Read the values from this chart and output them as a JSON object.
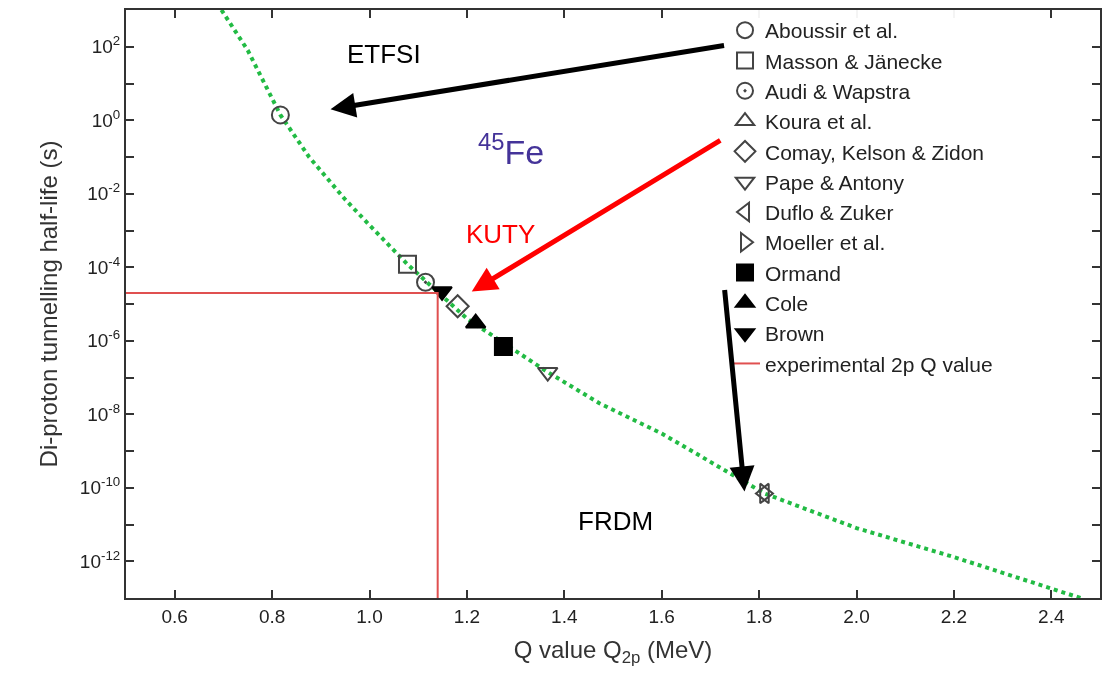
{
  "chart_data": {
    "type": "scatter",
    "xlabel": "Q value Q$_{2p}$ (MeV)",
    "ylabel": "Di-proton tunnelling half-life (s)",
    "log": "y",
    "xlim": [
      0.5,
      2.5
    ],
    "xticks": [
      0.6,
      0.8,
      {
        "value": 1,
        "label": "1.0"
      },
      1.2,
      1.4,
      1.6,
      1.8,
      {
        "value": 2,
        "label": "2.0"
      },
      2.2,
      2.4
    ],
    "ylim": [
      1e-13,
      1000
    ],
    "yticks": [
      {
        "value": 1e-12,
        "label": "10$^{-12}$"
      },
      {
        "value": 1e-11,
        "label": null
      },
      {
        "value": 1e-10,
        "label": "10$^{-10}$"
      },
      {
        "value": 1e-09,
        "label": null
      },
      {
        "value": 1e-08,
        "label": "10$^{-8}$"
      },
      {
        "value": 1e-07,
        "label": null
      },
      {
        "value": 1e-06,
        "label": "10$^{-6}$"
      },
      {
        "value": 1e-05,
        "label": null
      },
      {
        "value": 0.0001,
        "label": "10$^{-4}$"
      },
      {
        "value": 0.001,
        "label": null
      },
      {
        "value": 0.01,
        "label": "10$^{-2}$"
      },
      {
        "value": 0.1,
        "label": null
      },
      {
        "value": 1,
        "label": "10$^{0}$"
      },
      {
        "value": 10,
        "label": null
      },
      {
        "value": 100,
        "label": "10$^{2}$"
      }
    ],
    "legend": "top right",
    "series": [
      {
        "type": "line",
        "color": "#22bb44",
        "line_style": "dotted",
        "marker": "none",
        "x": [
          0.696,
          0.75,
          0.817,
          0.876,
          0.95,
          1.0,
          1.078,
          1.2,
          1.366,
          1.472,
          1.6,
          1.811,
          2.0,
          2.2,
          2.46
        ],
        "values": [
          1000,
          80,
          1.4,
          0.1,
          0.007,
          0.0014,
          0.00012,
          4e-06,
          1.4e-07,
          2e-08,
          3e-09,
          7e-11,
          8e-12,
          1.3e-12,
          1e-13
        ]
      },
      {
        "name": "Aboussir et al.",
        "color": "#444444",
        "marker": "circle-open",
        "x": [
          0.817
        ],
        "values": [
          1.4
        ]
      },
      {
        "name": "Masson & Jänecke",
        "color": "#444444",
        "marker": "square-open",
        "x": [
          1.078
        ],
        "values": [
          0.00012
        ]
      },
      {
        "name": "Audi & Wapstra",
        "color": "#444444",
        "marker": "circle-open-dot",
        "x": [
          1.115
        ],
        "values": [
          3.9e-05
        ]
      },
      {
        "name": "Koura et al.",
        "color": "#444444",
        "marker": "triangle-up-open"
      },
      {
        "name": "Comay, Kelson & Zidon",
        "color": "#444444",
        "marker": "diamond-open",
        "x": [
          1.181
        ],
        "values": [
          8.7e-06
        ]
      },
      {
        "name": "Pape & Antony",
        "color": "#444444",
        "marker": "triangle-down-open",
        "x": [
          1.366
        ],
        "values": [
          1.4e-07
        ]
      },
      {
        "name": "Duflo & Zuker",
        "color": "#444444",
        "marker": "triangle-left-open",
        "x": [
          1.811
        ],
        "values": [
          7e-11
        ]
      },
      {
        "name": "Moeller et al.",
        "color": "#444444",
        "marker": "triangle-right-open",
        "x": [
          1.811
        ],
        "values": [
          7e-11
        ]
      },
      {
        "name": "Ormand",
        "color": "#000000",
        "marker": "square",
        "x": [
          1.275
        ],
        "values": [
          7e-07
        ]
      },
      {
        "name": "Cole",
        "color": "#000000",
        "marker": "triangle-up",
        "x": [
          1.218
        ],
        "values": [
          3e-06
        ]
      },
      {
        "name": "Brown",
        "color": "#000000",
        "marker": "triangle-down",
        "x": [
          1.149
        ],
        "values": [
          2.2e-05
        ]
      },
      {
        "name": "experimental 2p Q value",
        "type": "line",
        "color": "#e05050",
        "line_style": "solid",
        "marker": "none",
        "x": [
          0.5,
          1.14,
          1.14
        ],
        "values": [
          2e-05,
          2e-05,
          1e-13
        ]
      }
    ],
    "annotations": [
      "ETFSI",
      "KUTY",
      "FRDM",
      "$^{45}$Fe"
    ]
  }
}
